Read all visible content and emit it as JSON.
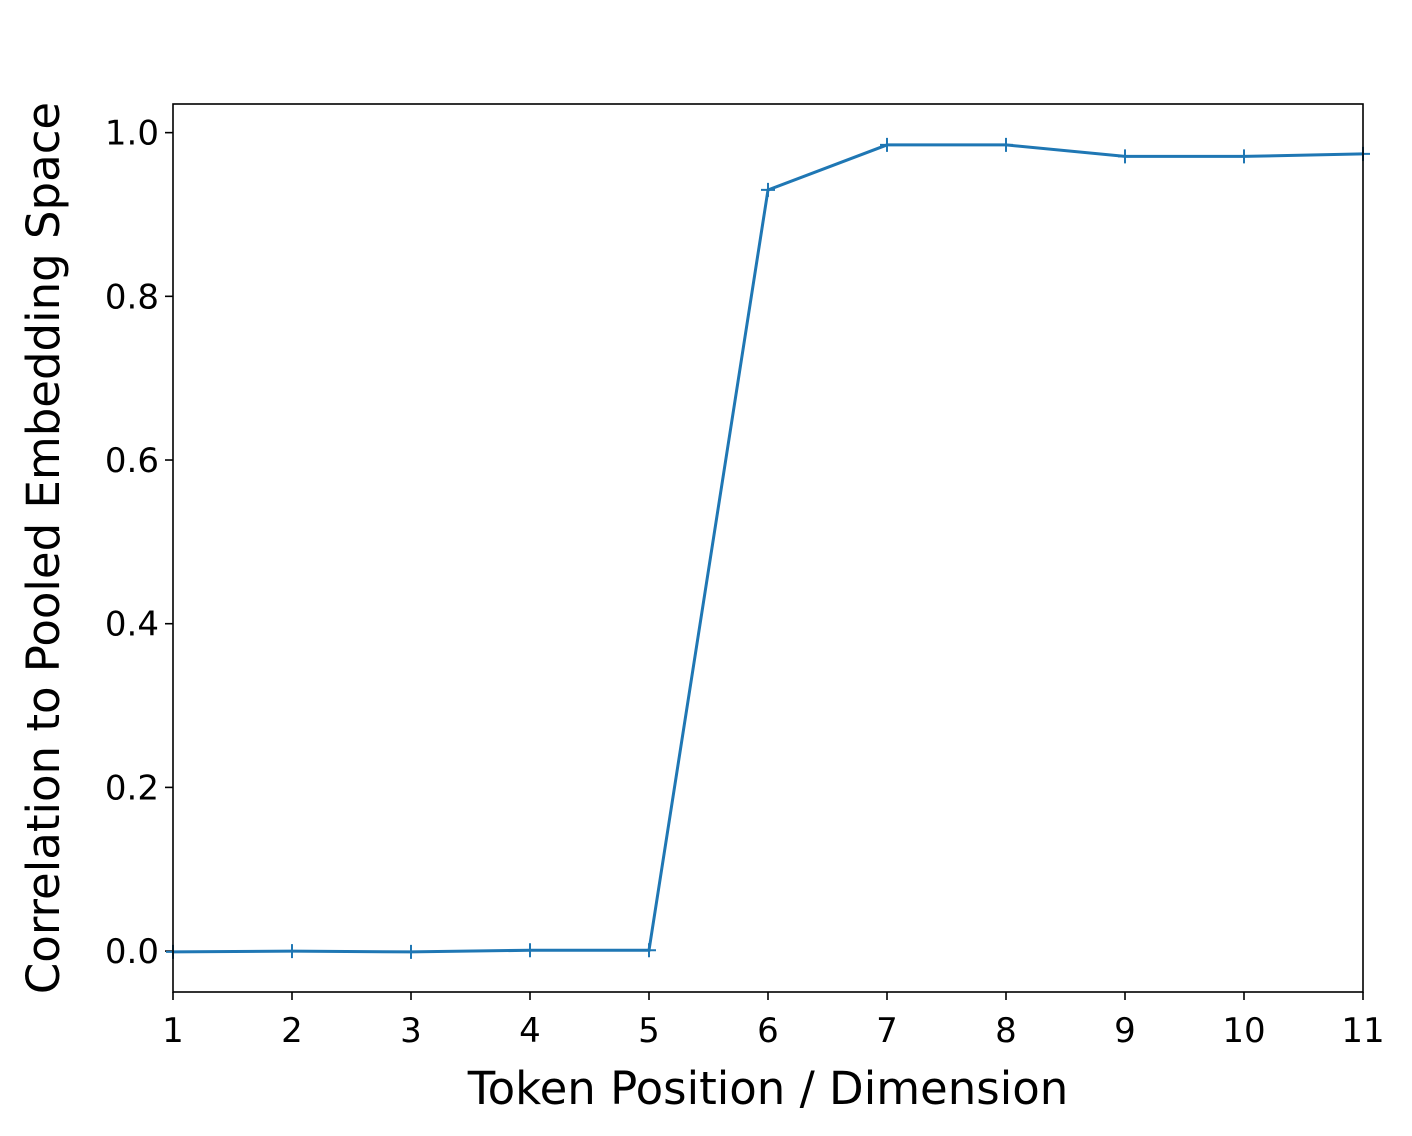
{
  "chart_data": {
    "type": "line",
    "xlabel": "Token Position / Dimension",
    "ylabel": "Correlation to Pooled Embedding Space",
    "x": [
      1,
      2,
      3,
      4,
      5,
      6,
      7,
      8,
      9,
      10,
      11
    ],
    "series": [
      {
        "color": "#1f77b4",
        "marker": "+",
        "values": [
          -0.001,
          0.0,
          -0.001,
          0.001,
          0.001,
          0.93,
          0.985,
          0.985,
          0.971,
          0.971,
          0.974
        ]
      }
    ],
    "xlim": [
      1,
      11
    ],
    "xticks": [
      1,
      2,
      3,
      4,
      5,
      6,
      7,
      8,
      9,
      10,
      11
    ],
    "ylim": [
      -0.05,
      1.035
    ],
    "yticks": [
      {
        "value": 0,
        "label": "0.0"
      },
      0.2,
      0.4,
      0.6,
      0.8,
      {
        "value": 1,
        "label": "1.0"
      }
    ],
    "grid": false
  }
}
